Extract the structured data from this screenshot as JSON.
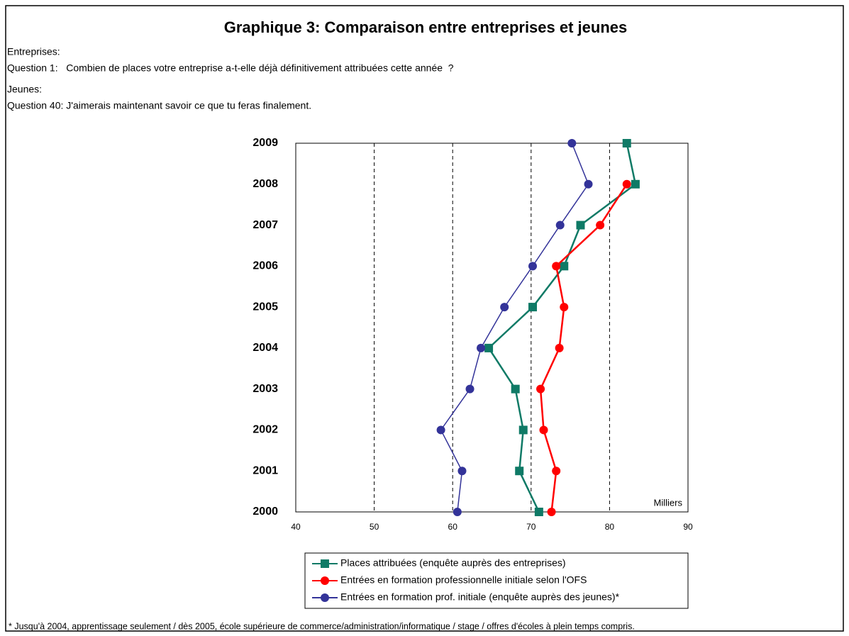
{
  "chart_data": {
    "type": "line",
    "title": "Graphique 3: Comparaison entre entreprises et jeunes",
    "annotations": [
      "Entreprises:",
      "Question 1:   Combien de places votre entreprise a-t-elle déjà définitivement attribuées cette année  ?",
      "Jeunes:",
      "Question 40: J'aimerais maintenant savoir ce que tu feras finalement."
    ],
    "unit_label": "Milliers",
    "footnote": "* Jusqu'à 2004, apprentissage seulement / dès 2005, école supérieure de commerce/administration/informatique / stage / offres d'écoles à plein temps compris.",
    "categories": [
      "2000",
      "2001",
      "2002",
      "2003",
      "2004",
      "2005",
      "2006",
      "2007",
      "2008",
      "2009"
    ],
    "series": [
      {
        "name": "Places attribuées (enquête auprès des entreprises)",
        "color": "#0f7a66",
        "marker": "square",
        "values": [
          71.0,
          68.5,
          69.0,
          68.0,
          64.6,
          70.2,
          74.2,
          76.3,
          83.3,
          82.2
        ]
      },
      {
        "name": "Entrées en formation professionnelle initiale selon l'OFS",
        "color": "#ff0000",
        "marker": "circle",
        "values": [
          72.6,
          73.2,
          71.6,
          71.2,
          73.6,
          74.2,
          73.2,
          78.8,
          82.2,
          null
        ]
      },
      {
        "name": "Entrées en formation prof. initiale (enquête auprès des jeunes)*",
        "color": "#333399",
        "marker": "circle",
        "values": [
          60.6,
          61.2,
          58.5,
          62.2,
          63.6,
          66.6,
          70.2,
          73.7,
          77.3,
          75.2
        ]
      }
    ],
    "xlim": [
      40,
      90
    ],
    "xticks": [
      40,
      50,
      60,
      70,
      80,
      90
    ],
    "grid": true
  }
}
